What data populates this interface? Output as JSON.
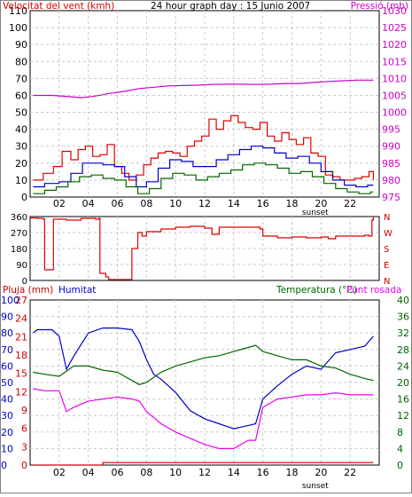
{
  "chart_data": [
    {
      "type": "line",
      "title": "24 hour graph day : 15 Junio 2007",
      "left_axis_label": "Velocitat del vent (kmh)",
      "right_axis_label": "Pressió (mb)",
      "x_ticks": [
        "02",
        "04",
        "06",
        "08",
        "10",
        "12",
        "14",
        "16",
        "18",
        "20",
        "22"
      ],
      "x_annotation": "sunset",
      "x_annotation_at": 19.6,
      "ylim": [
        0,
        110
      ],
      "y_ticks": [
        0,
        10,
        20,
        30,
        40,
        50,
        60,
        70,
        80,
        90,
        100,
        110
      ],
      "y2lim": [
        975,
        1030
      ],
      "y2_ticks": [
        975,
        980,
        985,
        990,
        995,
        1000,
        1005,
        1010,
        1015,
        1020,
        1025,
        1030
      ],
      "grid": true,
      "series": [
        {
          "role": "wind-gust",
          "axis": "left",
          "color": "#dd0000",
          "x": [
            0.2,
            0.9,
            1.6,
            2.2,
            2.8,
            3.3,
            3.8,
            4.3,
            4.8,
            5.3,
            5.8,
            6.3,
            6.8,
            7.3,
            7.8,
            8.3,
            8.8,
            9.3,
            9.8,
            10.3,
            10.8,
            11.3,
            11.8,
            12.3,
            12.8,
            13.3,
            13.8,
            14.3,
            14.8,
            15.3,
            15.8,
            16.3,
            16.8,
            17.3,
            17.8,
            18.3,
            18.8,
            19.3,
            19.8,
            20.3,
            20.8,
            21.3,
            21.8,
            22.3,
            22.8,
            23.3,
            23.6
          ],
          "y": [
            10,
            14,
            18,
            27,
            22,
            28,
            30,
            24,
            25,
            31,
            18,
            14,
            10,
            13,
            19,
            23,
            26,
            27,
            26,
            24,
            30,
            33,
            36,
            46,
            40,
            45,
            48,
            44,
            41,
            40,
            44,
            36,
            33,
            38,
            34,
            31,
            35,
            26,
            24,
            13,
            12,
            10,
            10,
            11,
            12,
            15,
            10
          ]
        },
        {
          "role": "wind-average",
          "axis": "left",
          "color": "#0000cc",
          "x": [
            0.2,
            1.0,
            2.0,
            2.8,
            3.6,
            4.3,
            5.0,
            5.8,
            6.5,
            7.3,
            8.0,
            8.8,
            9.6,
            10.4,
            11.2,
            12.0,
            12.8,
            13.6,
            14.4,
            15.2,
            16.0,
            16.8,
            17.6,
            18.4,
            19.2,
            20.0,
            20.8,
            21.6,
            22.4,
            23.2,
            23.6
          ],
          "y": [
            6,
            8,
            9,
            14,
            20,
            20,
            19,
            18,
            12,
            6,
            9,
            17,
            22,
            21,
            18,
            18,
            22,
            25,
            28,
            30,
            29,
            26,
            23,
            24,
            20,
            15,
            10,
            7,
            6,
            7,
            7
          ]
        },
        {
          "role": "wind-min",
          "axis": "left",
          "color": "#006600",
          "x": [
            0.2,
            1.0,
            1.8,
            2.6,
            3.4,
            4.2,
            5.0,
            5.8,
            6.6,
            7.4,
            8.2,
            9.0,
            9.8,
            10.6,
            11.4,
            12.2,
            13.0,
            13.8,
            14.6,
            15.4,
            16.2,
            17.0,
            17.8,
            18.6,
            19.4,
            20.2,
            21.0,
            21.8,
            22.6,
            23.4,
            23.6
          ],
          "y": [
            2,
            4,
            6,
            9,
            12,
            13,
            11,
            10,
            6,
            2,
            5,
            11,
            14,
            13,
            10,
            12,
            14,
            16,
            19,
            20,
            19,
            17,
            14,
            15,
            12,
            8,
            5,
            3,
            2,
            3,
            3
          ]
        },
        {
          "role": "pressure",
          "axis": "right",
          "color": "#cc00cc",
          "x": [
            0.2,
            1.5,
            2.5,
            3.5,
            4.5,
            5.5,
            6.5,
            7.5,
            8.5,
            9.5,
            10.5,
            11.5,
            12.5,
            13.5,
            14.5,
            15.5,
            16.5,
            17.5,
            18.5,
            19.5,
            20.5,
            21.5,
            22.5,
            23.5,
            23.6
          ],
          "y": [
            1005,
            1005,
            1004.7,
            1004.3,
            1004.8,
            1005.6,
            1006.2,
            1007.0,
            1007.4,
            1007.8,
            1007.9,
            1008.0,
            1008.2,
            1008.3,
            1008.3,
            1008.2,
            1008.3,
            1008.5,
            1008.5,
            1008.8,
            1009.1,
            1009.3,
            1009.5,
            1009.5,
            1009.5
          ]
        }
      ]
    },
    {
      "type": "line",
      "right_axis_label": [
        "N",
        "W",
        "S",
        "E",
        "N"
      ],
      "ylim": [
        0,
        360
      ],
      "y_ticks": [
        0,
        90,
        180,
        270,
        360
      ],
      "grid": true,
      "series": [
        {
          "role": "wind-direction",
          "color": "#dd0000",
          "x": [
            0.0,
            0.5,
            0.9,
            1.0,
            1.5,
            1.6,
            2.5,
            3.5,
            4.5,
            4.7,
            4.8,
            5.2,
            5.4,
            6.6,
            6.8,
            7.0,
            7.4,
            7.7,
            8.0,
            9.0,
            10.0,
            11.0,
            12.0,
            12.5,
            13.0,
            14.0,
            15.0,
            15.8,
            16.0,
            17.0,
            18.0,
            19.0,
            20.0,
            20.5,
            21.0,
            22.0,
            23.0,
            23.3,
            23.5,
            23.6
          ],
          "y": [
            352,
            350,
            345,
            60,
            60,
            345,
            340,
            350,
            345,
            350,
            40,
            20,
            5,
            5,
            5,
            180,
            270,
            250,
            275,
            290,
            300,
            305,
            295,
            260,
            300,
            300,
            300,
            290,
            250,
            240,
            245,
            240,
            245,
            235,
            250,
            250,
            255,
            250,
            340,
            360
          ]
        }
      ]
    },
    {
      "type": "line",
      "legend": [
        "Pluja (mm)",
        "Humitat",
        "Temperatura (°C)",
        "Punt rosada"
      ],
      "left_axis_1": {
        "label": "Pluja (mm)",
        "ylim": [
          0,
          27
        ],
        "ticks": [
          0,
          3,
          6,
          9,
          12,
          15,
          18,
          21,
          24,
          27
        ]
      },
      "left_axis_2": {
        "label": "Humitat",
        "ylim": [
          0,
          100
        ],
        "ticks": [
          0,
          10,
          20,
          30,
          40,
          50,
          60,
          70,
          80,
          90,
          100
        ]
      },
      "right_axis": {
        "label": "Temperatura (°C)",
        "ylim": [
          0,
          40
        ],
        "ticks": [
          0,
          4,
          8,
          12,
          16,
          20,
          24,
          28,
          32,
          36,
          40
        ]
      },
      "x_ticks": [
        "02",
        "04",
        "06",
        "08",
        "10",
        "12",
        "14",
        "16",
        "18",
        "20",
        "22"
      ],
      "x_annotation": "sunset",
      "x_annotation_at": 19.6,
      "grid": true,
      "series": [
        {
          "role": "rain",
          "axis": "left_axis_1",
          "color": "#cc0000",
          "x": [
            0.2,
            4.5,
            4.9,
            5.0,
            23.6
          ],
          "y": [
            0.0,
            0.0,
            0.0,
            0.4,
            0.4
          ]
        },
        {
          "role": "humidity",
          "axis": "left_axis_2",
          "color": "#0000cc",
          "x": [
            0.2,
            0.5,
            1.0,
            1.5,
            2.0,
            2.5,
            3.0,
            4.0,
            5.0,
            6.0,
            7.0,
            7.5,
            8.0,
            8.5,
            9.0,
            10.0,
            11.0,
            12.0,
            13.0,
            14.0,
            15.0,
            15.5,
            16.0,
            17.0,
            18.0,
            19.0,
            20.0,
            21.0,
            22.0,
            23.0,
            23.6
          ],
          "y": [
            80,
            82,
            82,
            82,
            78,
            58,
            66,
            80,
            83,
            83,
            82,
            75,
            64,
            55,
            52,
            44,
            33,
            28,
            25,
            22,
            24,
            25,
            40,
            48,
            55,
            60,
            58,
            68,
            70,
            72,
            78
          ]
        },
        {
          "role": "temperature",
          "axis": "right_axis",
          "color": "#006600",
          "x": [
            0.2,
            1.0,
            2.0,
            3.0,
            4.0,
            5.0,
            6.0,
            7.0,
            7.5,
            8.0,
            9.0,
            10.0,
            11.0,
            12.0,
            13.0,
            14.0,
            15.0,
            15.5,
            16.0,
            17.0,
            18.0,
            19.0,
            20.0,
            21.0,
            22.0,
            23.0,
            23.6
          ],
          "y": [
            22.5,
            22.0,
            21.5,
            24.0,
            24.0,
            23.0,
            22.5,
            20.5,
            19.5,
            20.0,
            22.5,
            24.0,
            25.0,
            26.0,
            26.5,
            27.5,
            28.5,
            29.0,
            27.5,
            26.5,
            25.5,
            25.5,
            24.0,
            23.5,
            22.0,
            21.0,
            20.5
          ]
        },
        {
          "role": "dew-point",
          "axis": "right_axis",
          "color": "#ee00ee",
          "x": [
            0.2,
            1.0,
            2.0,
            2.5,
            3.0,
            4.0,
            5.0,
            6.0,
            7.0,
            7.5,
            8.0,
            9.0,
            10.0,
            11.0,
            12.0,
            13.0,
            14.0,
            15.0,
            15.5,
            16.0,
            17.0,
            18.0,
            19.0,
            20.0,
            21.0,
            22.0,
            23.0,
            23.6
          ],
          "y": [
            18.5,
            18.0,
            18.0,
            13.0,
            14.0,
            15.5,
            16.0,
            16.5,
            16.0,
            15.5,
            13.0,
            10.0,
            8.0,
            6.5,
            5.0,
            4.0,
            4.0,
            6.0,
            6.0,
            14.0,
            16.0,
            16.5,
            17.0,
            17.0,
            17.5,
            17.0,
            17.0,
            17.0
          ]
        }
      ]
    }
  ]
}
